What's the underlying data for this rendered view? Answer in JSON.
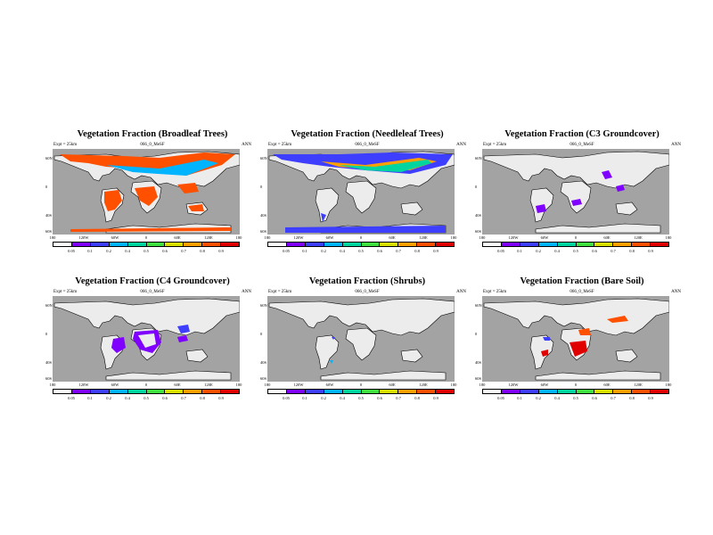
{
  "colorbar": {
    "colors": [
      "#ffffff",
      "#7f00ff",
      "#3e3eff",
      "#00b4ff",
      "#00d5a0",
      "#40e040",
      "#d8e000",
      "#ffa000",
      "#ff5000",
      "#e00000"
    ],
    "labels": [
      "0.05",
      "0.1",
      "0.2",
      "0.4",
      "0.5",
      "0.6",
      "0.7",
      "0.8",
      "0.9"
    ]
  },
  "palette": {
    "ocean": "#a3a3a3",
    "land": "#ececec"
  },
  "axes": {
    "lat_labels": [
      "60N",
      "0",
      "40S",
      "60S"
    ],
    "lon_labels": [
      "180",
      "120W",
      "60W",
      "0",
      "60E",
      "120E",
      "180"
    ]
  },
  "panels": [
    {
      "title": "Vegetation Fraction (Broadleaf Trees)",
      "left": "Expt = 25km",
      "center": "066_0_MeSF",
      "right": "ANN",
      "lat_labels": [
        "60N",
        "0",
        "40S",
        "60S"
      ],
      "lon_labels": [
        "180",
        "120W",
        "60W",
        "0",
        "60E",
        "120E",
        "180"
      ],
      "cbar_labels": [
        "0.05",
        "0.1",
        "0.2",
        "0.4",
        "0.5",
        "0.6",
        "0.7",
        "0.8",
        "0.9"
      ]
    },
    {
      "title": "Vegetation Fraction (Needleleaf Trees)",
      "left": "Expt = 25km",
      "center": "066_0_MeSF",
      "right": "ANN",
      "lat_labels": [
        "60N",
        "0",
        "40S",
        "60S"
      ],
      "lon_labels": [
        "180",
        "120W",
        "60W",
        "0",
        "60E",
        "120E",
        "180"
      ],
      "cbar_labels": [
        "0.05",
        "0.1",
        "0.2",
        "0.4",
        "0.5",
        "0.6",
        "0.7",
        "0.8",
        "0.9"
      ]
    },
    {
      "title": "Vegetation Fraction (C3 Groundcover)",
      "left": "Expt = 25km",
      "center": "066_0_MeSF",
      "right": "ANN",
      "lat_labels": [
        "60N",
        "0",
        "40S",
        "60S"
      ],
      "lon_labels": [
        "180",
        "120W",
        "60W",
        "0",
        "60E",
        "120E",
        "180"
      ],
      "cbar_labels": [
        "0.05",
        "0.1",
        "0.2",
        "0.4",
        "0.5",
        "0.6",
        "0.7",
        "0.8",
        "0.9"
      ]
    },
    {
      "title": "Vegetation Fraction (C4 Groundcover)",
      "left": "Expt = 25km",
      "center": "066_0_MeSF",
      "right": "ANN",
      "lat_labels": [
        "60N",
        "0",
        "40S",
        "60S"
      ],
      "lon_labels": [
        "180",
        "120W",
        "60W",
        "0",
        "60E",
        "120E",
        "180"
      ],
      "cbar_labels": [
        "0.05",
        "0.1",
        "0.2",
        "0.4",
        "0.5",
        "0.6",
        "0.7",
        "0.8",
        "0.9"
      ]
    },
    {
      "title": "Vegetation Fraction (Shrubs)",
      "left": "Expt = 25km",
      "center": "066_0_MeSF",
      "right": "ANN",
      "lat_labels": [
        "60N",
        "0",
        "40S",
        "60S"
      ],
      "lon_labels": [
        "180",
        "120W",
        "60W",
        "0",
        "60E",
        "120E",
        "180"
      ],
      "cbar_labels": [
        "0.05",
        "0.1",
        "0.2",
        "0.4",
        "0.5",
        "0.6",
        "0.7",
        "0.8",
        "0.9"
      ]
    },
    {
      "title": "Vegetation Fraction (Bare Soil)",
      "left": "Expt = 25km",
      "center": "066_0_MeSF",
      "right": "ANN",
      "lat_labels": [
        "60N",
        "0",
        "40S",
        "60S"
      ],
      "lon_labels": [
        "180",
        "120W",
        "60W",
        "0",
        "60E",
        "120E",
        "180"
      ],
      "cbar_labels": [
        "0.05",
        "0.1",
        "0.2",
        "0.4",
        "0.5",
        "0.6",
        "0.7",
        "0.8",
        "0.9"
      ]
    }
  ]
}
